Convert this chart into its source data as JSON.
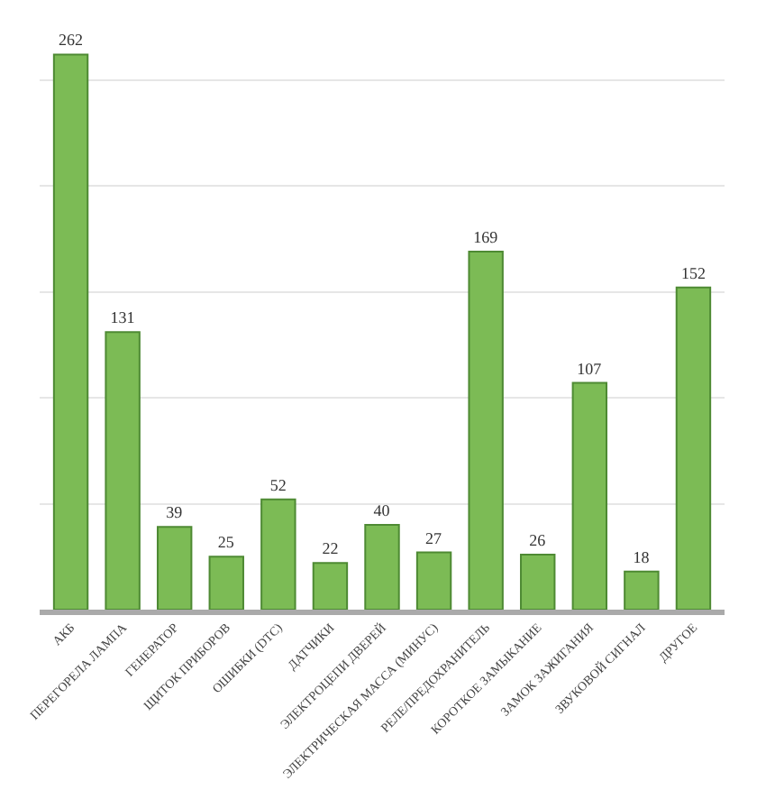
{
  "chart_data": {
    "type": "bar",
    "categories": [
      "АКБ",
      "ПЕРЕГОРЕЛА ЛАМПА",
      "ГЕНЕРАТОР",
      "ЩИТОК ПРИБОРОВ",
      "ОШИБКИ (DTC)",
      "ДАТЧИКИ",
      "ЭЛЕКТРОЦЕПИ ДВЕРЕЙ",
      "ЭЛЕКТРИЧЕСКАЯ МАССА (МИНУС)",
      "РЕЛЕ/ПРЕДОХРАНИТЕЛЬ",
      "КОРОТКОЕ ЗАМЫКАНИЕ",
      "ЗАМОК ЗАЖИГАНИЯ",
      "ЗВУКОВОЙ СИГНАЛ",
      "ДРУГОЕ"
    ],
    "values": [
      262,
      131,
      39,
      25,
      52,
      22,
      40,
      27,
      169,
      26,
      107,
      18,
      152
    ],
    "color": "#7cbb55",
    "yticks": [
      {
        "value": 50,
        "label": null
      },
      {
        "value": 100,
        "label": null
      },
      {
        "value": 150,
        "label": null
      },
      {
        "value": 200,
        "label": null
      },
      {
        "value": 250,
        "label": null
      }
    ],
    "tick_labels": "x",
    "grid": "y",
    "data_labels": true
  }
}
